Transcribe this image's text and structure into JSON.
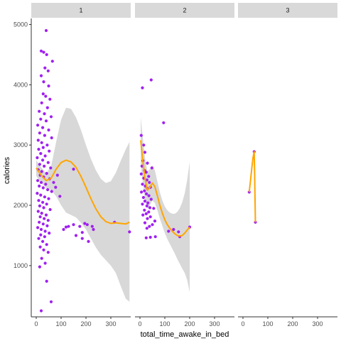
{
  "chart_data": {
    "type": "scatter",
    "xlabel": "total_time_awake_in_bed",
    "ylabel": "calories",
    "xlim": [
      -20,
      380
    ],
    "ylim": [
      150,
      5100
    ],
    "x_ticks": [
      0,
      100,
      200,
      300
    ],
    "y_ticks": [
      1000,
      2000,
      3000,
      4000,
      5000
    ],
    "grid": false,
    "colors": {
      "points": "#a020f0",
      "smooth": "#ffa500",
      "ribbon": "#bebebe",
      "strip": "#d9d9d9"
    },
    "facets": [
      {
        "label": "1",
        "points": [
          [
            40,
            4900
          ],
          [
            20,
            4560
          ],
          [
            30,
            4540
          ],
          [
            42,
            4500
          ],
          [
            65,
            4390
          ],
          [
            35,
            4280
          ],
          [
            48,
            4230
          ],
          [
            20,
            4150
          ],
          [
            30,
            4050
          ],
          [
            50,
            3980
          ],
          [
            28,
            3850
          ],
          [
            38,
            3810
          ],
          [
            55,
            3760
          ],
          [
            22,
            3700
          ],
          [
            45,
            3620
          ],
          [
            12,
            3560
          ],
          [
            33,
            3520
          ],
          [
            60,
            3470
          ],
          [
            18,
            3430
          ],
          [
            40,
            3400
          ],
          [
            6,
            3330
          ],
          [
            26,
            3290
          ],
          [
            50,
            3250
          ],
          [
            14,
            3200
          ],
          [
            34,
            3160
          ],
          [
            62,
            3120
          ],
          [
            8,
            3080
          ],
          [
            22,
            3040
          ],
          [
            44,
            3000
          ],
          [
            28,
            2960
          ],
          [
            10,
            2930
          ],
          [
            52,
            2900
          ],
          [
            18,
            2860
          ],
          [
            36,
            2820
          ],
          [
            4,
            2790
          ],
          [
            26,
            2750
          ],
          [
            48,
            2710
          ],
          [
            14,
            2680
          ],
          [
            32,
            2650
          ],
          [
            58,
            2620
          ],
          [
            8,
            2590
          ],
          [
            22,
            2560
          ],
          [
            42,
            2530
          ],
          [
            16,
            2500
          ],
          [
            30,
            2470
          ],
          [
            54,
            2440
          ],
          [
            6,
            2410
          ],
          [
            20,
            2380
          ],
          [
            38,
            2350
          ],
          [
            12,
            2320
          ],
          [
            28,
            2290
          ],
          [
            46,
            2260
          ],
          [
            62,
            2230
          ],
          [
            4,
            2200
          ],
          [
            18,
            2170
          ],
          [
            34,
            2140
          ],
          [
            50,
            2110
          ],
          [
            10,
            2080
          ],
          [
            26,
            2050
          ],
          [
            42,
            2020
          ],
          [
            14,
            1990
          ],
          [
            30,
            1960
          ],
          [
            56,
            1930
          ],
          [
            8,
            1900
          ],
          [
            22,
            1870
          ],
          [
            40,
            1840
          ],
          [
            16,
            1810
          ],
          [
            32,
            1780
          ],
          [
            48,
            1750
          ],
          [
            12,
            1720
          ],
          [
            28,
            1690
          ],
          [
            44,
            1660
          ],
          [
            6,
            1630
          ],
          [
            20,
            1600
          ],
          [
            36,
            1570
          ],
          [
            52,
            1540
          ],
          [
            18,
            1510
          ],
          [
            34,
            1480
          ],
          [
            10,
            1450
          ],
          [
            26,
            1400
          ],
          [
            42,
            1350
          ],
          [
            16,
            1310
          ],
          [
            30,
            1260
          ],
          [
            48,
            1220
          ],
          [
            22,
            1120
          ],
          [
            36,
            1040
          ],
          [
            14,
            980
          ],
          [
            42,
            740
          ],
          [
            60,
            400
          ],
          [
            20,
            250
          ],
          [
            70,
            2380
          ],
          [
            78,
            2300
          ],
          [
            85,
            2500
          ],
          [
            95,
            2150
          ],
          [
            150,
            2600
          ],
          [
            110,
            1600
          ],
          [
            120,
            1640
          ],
          [
            130,
            1650
          ],
          [
            150,
            1680
          ],
          [
            160,
            1500
          ],
          [
            175,
            1650
          ],
          [
            185,
            1550
          ],
          [
            195,
            1700
          ],
          [
            205,
            1680
          ],
          [
            225,
            1650
          ],
          [
            185,
            1450
          ],
          [
            210,
            1400
          ],
          [
            230,
            1600
          ],
          [
            315,
            1720
          ],
          [
            375,
            1560
          ]
        ],
        "smooth": [
          [
            0,
            2620
          ],
          [
            20,
            2500
          ],
          [
            40,
            2410
          ],
          [
            60,
            2450
          ],
          [
            80,
            2600
          ],
          [
            100,
            2710
          ],
          [
            120,
            2750
          ],
          [
            140,
            2720
          ],
          [
            160,
            2630
          ],
          [
            180,
            2480
          ],
          [
            200,
            2300
          ],
          [
            220,
            2110
          ],
          [
            240,
            1940
          ],
          [
            260,
            1810
          ],
          [
            280,
            1730
          ],
          [
            300,
            1700
          ],
          [
            320,
            1710
          ],
          [
            340,
            1700
          ],
          [
            360,
            1690
          ],
          [
            375,
            1720
          ]
        ],
        "ribbon_upper": [
          [
            0,
            2750
          ],
          [
            20,
            2630
          ],
          [
            40,
            2530
          ],
          [
            60,
            2650
          ],
          [
            80,
            3050
          ],
          [
            100,
            3420
          ],
          [
            120,
            3620
          ],
          [
            140,
            3600
          ],
          [
            160,
            3460
          ],
          [
            180,
            3250
          ],
          [
            200,
            3000
          ],
          [
            220,
            2770
          ],
          [
            240,
            2580
          ],
          [
            260,
            2440
          ],
          [
            280,
            2370
          ],
          [
            300,
            2400
          ],
          [
            320,
            2540
          ],
          [
            340,
            2740
          ],
          [
            360,
            2930
          ],
          [
            375,
            3050
          ]
        ],
        "ribbon_lower": [
          [
            0,
            2490
          ],
          [
            20,
            2370
          ],
          [
            40,
            2290
          ],
          [
            60,
            2250
          ],
          [
            80,
            2150
          ],
          [
            100,
            2000
          ],
          [
            120,
            1880
          ],
          [
            140,
            1840
          ],
          [
            160,
            1800
          ],
          [
            180,
            1710
          ],
          [
            200,
            1600
          ],
          [
            220,
            1450
          ],
          [
            240,
            1300
          ],
          [
            260,
            1180
          ],
          [
            280,
            1090
          ],
          [
            300,
            1000
          ],
          [
            320,
            880
          ],
          [
            340,
            660
          ],
          [
            360,
            450
          ],
          [
            375,
            400
          ]
        ]
      },
      {
        "label": "2",
        "points": [
          [
            10,
            3950
          ],
          [
            45,
            4080
          ],
          [
            5,
            3160
          ],
          [
            95,
            3370
          ],
          [
            15,
            3000
          ],
          [
            20,
            2880
          ],
          [
            12,
            2740
          ],
          [
            30,
            2700
          ],
          [
            8,
            2650
          ],
          [
            48,
            2620
          ],
          [
            18,
            2580
          ],
          [
            25,
            2550
          ],
          [
            5,
            2520
          ],
          [
            35,
            2480
          ],
          [
            15,
            2450
          ],
          [
            28,
            2420
          ],
          [
            38,
            2380
          ],
          [
            10,
            2350
          ],
          [
            22,
            2320
          ],
          [
            42,
            2300
          ],
          [
            30,
            2280
          ],
          [
            18,
            2240
          ],
          [
            6,
            2220
          ],
          [
            26,
            2190
          ],
          [
            36,
            2160
          ],
          [
            14,
            2130
          ],
          [
            45,
            2100
          ],
          [
            20,
            2070
          ],
          [
            32,
            2040
          ],
          [
            10,
            2020
          ],
          [
            28,
            1990
          ],
          [
            40,
            1960
          ],
          [
            55,
            1950
          ],
          [
            18,
            1920
          ],
          [
            35,
            1890
          ],
          [
            25,
            1860
          ],
          [
            12,
            1840
          ],
          [
            42,
            1810
          ],
          [
            30,
            1780
          ],
          [
            60,
            1740
          ],
          [
            20,
            1710
          ],
          [
            50,
            1680
          ],
          [
            38,
            1650
          ],
          [
            135,
            1600
          ],
          [
            28,
            1620
          ],
          [
            115,
            1570
          ],
          [
            62,
            1480
          ],
          [
            25,
            1460
          ],
          [
            42,
            1470
          ],
          [
            155,
            1560
          ],
          [
            200,
            1640
          ],
          [
            160,
            1480
          ]
        ],
        "smooth": [
          [
            3,
            3080
          ],
          [
            10,
            2800
          ],
          [
            20,
            2450
          ],
          [
            30,
            2250
          ],
          [
            40,
            2300
          ],
          [
            50,
            2370
          ],
          [
            60,
            2310
          ],
          [
            70,
            2160
          ],
          [
            80,
            2000
          ],
          [
            90,
            1870
          ],
          [
            100,
            1760
          ],
          [
            110,
            1680
          ],
          [
            120,
            1620
          ],
          [
            130,
            1570
          ],
          [
            140,
            1530
          ],
          [
            150,
            1500
          ],
          [
            160,
            1490
          ],
          [
            170,
            1500
          ],
          [
            180,
            1540
          ],
          [
            190,
            1590
          ],
          [
            200,
            1640
          ]
        ],
        "ribbon_upper": [
          [
            3,
            3460
          ],
          [
            10,
            3180
          ],
          [
            20,
            2800
          ],
          [
            30,
            2560
          ],
          [
            40,
            2600
          ],
          [
            50,
            2660
          ],
          [
            60,
            2580
          ],
          [
            70,
            2400
          ],
          [
            80,
            2220
          ],
          [
            90,
            2080
          ],
          [
            100,
            1980
          ],
          [
            110,
            1920
          ],
          [
            120,
            1880
          ],
          [
            130,
            1860
          ],
          [
            140,
            1860
          ],
          [
            150,
            1890
          ],
          [
            160,
            1950
          ],
          [
            170,
            2050
          ],
          [
            180,
            2200
          ],
          [
            190,
            2420
          ],
          [
            200,
            2720
          ]
        ],
        "ribbon_lower": [
          [
            3,
            2700
          ],
          [
            10,
            2420
          ],
          [
            20,
            2100
          ],
          [
            30,
            1940
          ],
          [
            40,
            2000
          ],
          [
            50,
            2080
          ],
          [
            60,
            2040
          ],
          [
            70,
            1920
          ],
          [
            80,
            1780
          ],
          [
            90,
            1660
          ],
          [
            100,
            1540
          ],
          [
            110,
            1440
          ],
          [
            120,
            1360
          ],
          [
            130,
            1280
          ],
          [
            140,
            1200
          ],
          [
            150,
            1110
          ],
          [
            160,
            1030
          ],
          [
            170,
            950
          ],
          [
            180,
            880
          ],
          [
            190,
            760
          ],
          [
            200,
            560
          ]
        ]
      },
      {
        "label": "3",
        "points": [
          [
            25,
            2220
          ],
          [
            45,
            2890
          ],
          [
            50,
            1720
          ]
        ],
        "smooth": [
          [
            25,
            2220
          ],
          [
            30,
            2400
          ],
          [
            35,
            2600
          ],
          [
            40,
            2780
          ],
          [
            45,
            2890
          ],
          [
            47,
            2550
          ],
          [
            50,
            1720
          ]
        ]
      }
    ]
  }
}
